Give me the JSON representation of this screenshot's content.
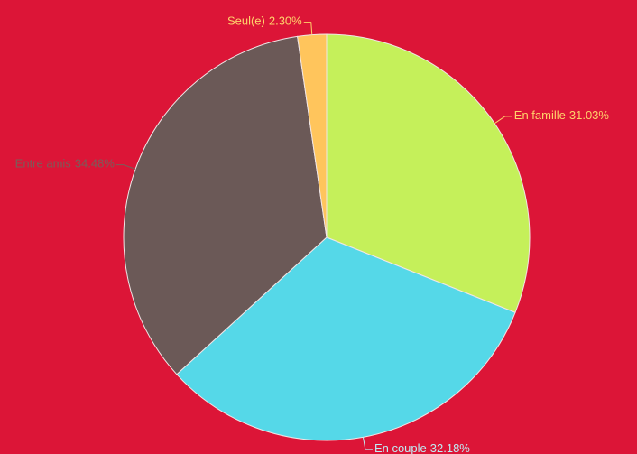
{
  "chart_data": {
    "type": "pie",
    "categories": [
      "En famille",
      "En couple",
      "Entre amis",
      "Seul(e)"
    ],
    "values": [
      31.03,
      32.18,
      34.48,
      2.3
    ],
    "value_labels": [
      "31.03%",
      "32.18%",
      "34.48%",
      "2.30%"
    ],
    "colors": [
      "#c5f05a",
      "#55d8e8",
      "#6b5957",
      "#ffc55c"
    ],
    "label_colors": [
      "#ffd36b",
      "#bfeef5",
      "#7a5e5a",
      "#ffd36b"
    ]
  }
}
